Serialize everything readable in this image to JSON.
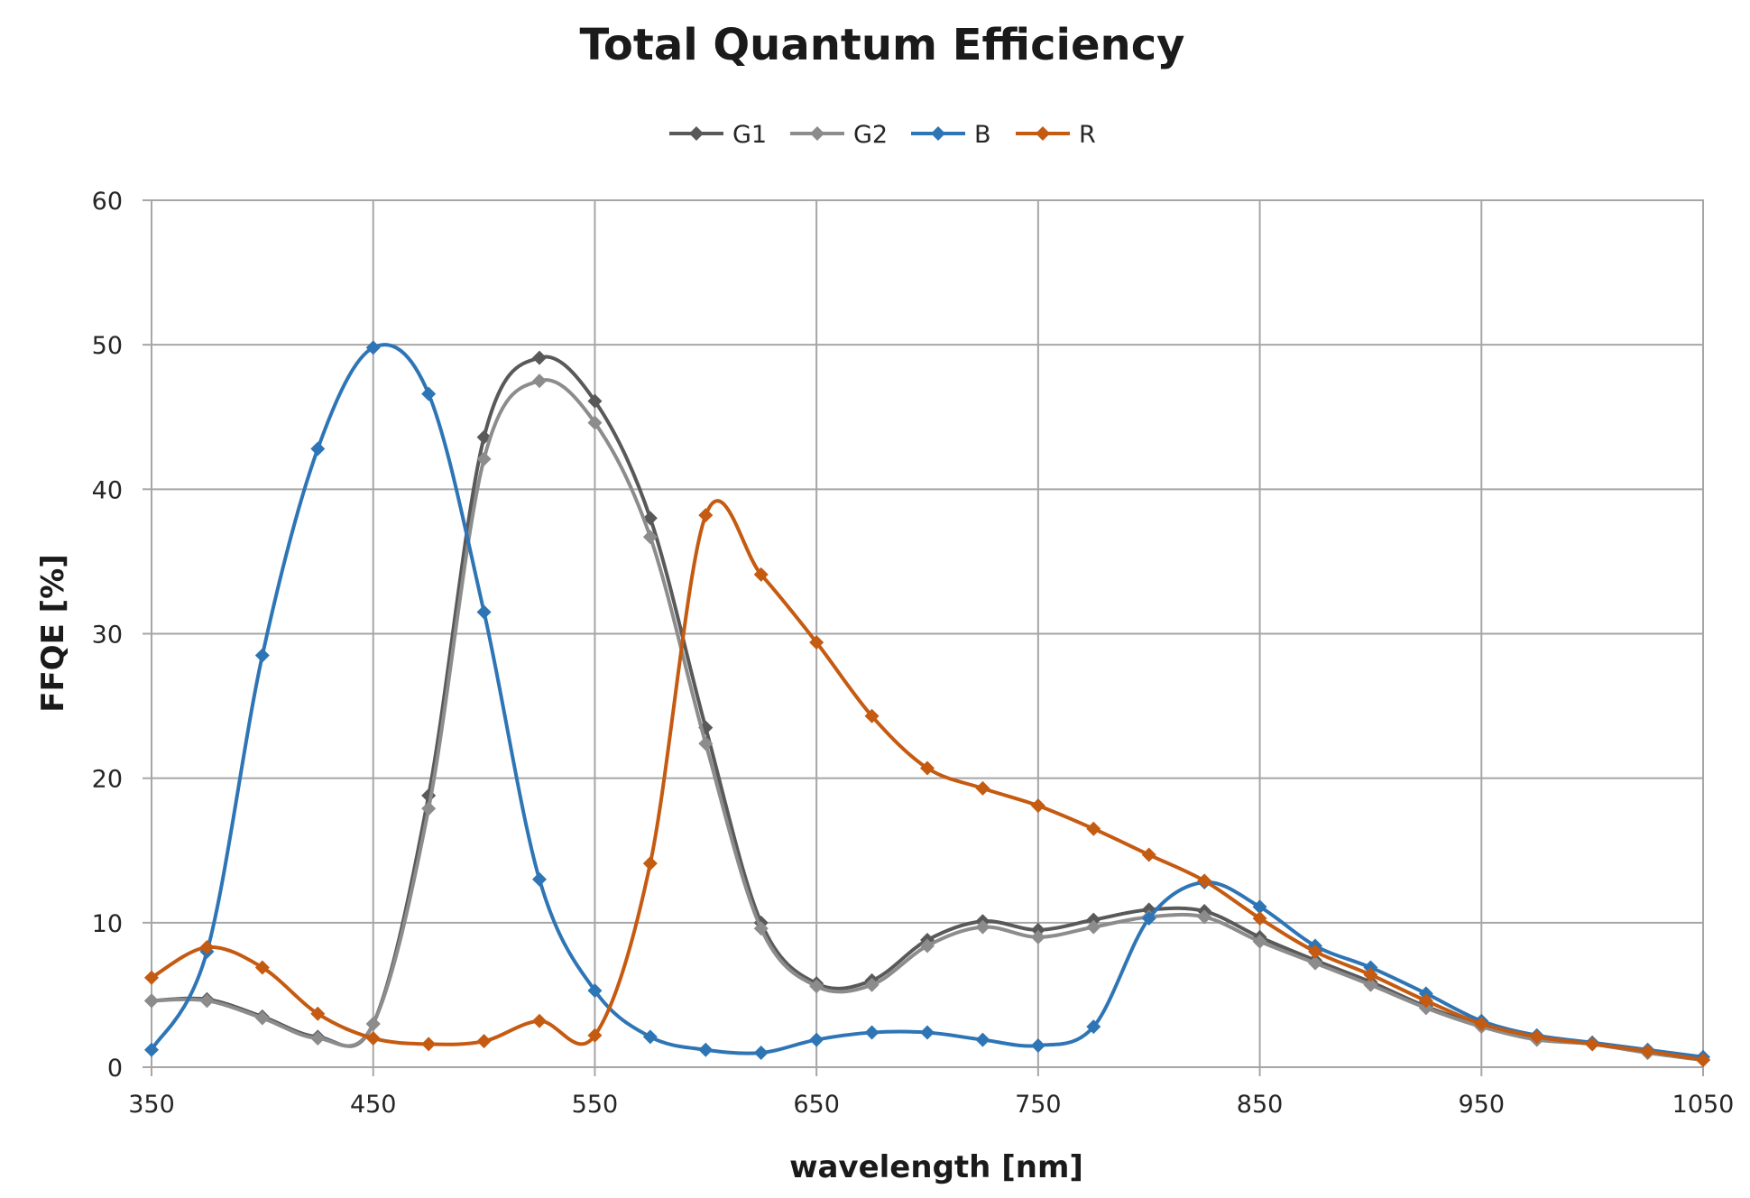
{
  "chart_data": {
    "type": "line",
    "title": "Total Quantum Efficiency",
    "xlabel": "wavelength [nm]",
    "ylabel": "FFQE [%]",
    "xlim": [
      350,
      1050
    ],
    "ylim": [
      0,
      60
    ],
    "x_ticks": [
      350,
      450,
      550,
      650,
      750,
      850,
      950,
      1050
    ],
    "y_ticks": [
      0,
      10,
      20,
      30,
      40,
      50,
      60
    ],
    "grid": true,
    "legend_position": "top-center",
    "x": [
      350,
      375,
      400,
      425,
      450,
      475,
      500,
      525,
      550,
      575,
      600,
      625,
      650,
      675,
      700,
      725,
      750,
      775,
      800,
      825,
      850,
      875,
      900,
      925,
      950,
      975,
      1000,
      1025,
      1050
    ],
    "series": [
      {
        "name": "G1",
        "color": "#595959",
        "values": [
          4.6,
          4.7,
          3.5,
          2.1,
          3.0,
          18.8,
          43.6,
          49.1,
          46.1,
          38.0,
          23.5,
          10.0,
          5.8,
          6.0,
          8.8,
          10.1,
          9.5,
          10.2,
          10.9,
          10.8,
          9.0,
          7.4,
          5.9,
          4.2,
          2.9,
          2.0,
          1.6,
          1.0,
          0.5
        ]
      },
      {
        "name": "G2",
        "color": "#8c8c8c",
        "values": [
          4.6,
          4.6,
          3.4,
          2.0,
          3.0,
          17.9,
          42.1,
          47.5,
          44.6,
          36.7,
          22.4,
          9.6,
          5.6,
          5.7,
          8.4,
          9.7,
          9.0,
          9.7,
          10.4,
          10.4,
          8.7,
          7.2,
          5.7,
          4.1,
          2.8,
          1.9,
          1.6,
          1.0,
          0.5
        ]
      },
      {
        "name": "B",
        "color": "#2e75b6",
        "values": [
          1.2,
          8.0,
          28.5,
          42.8,
          49.8,
          46.6,
          31.5,
          13.0,
          5.3,
          2.1,
          1.2,
          1.0,
          1.9,
          2.4,
          2.4,
          1.9,
          1.5,
          2.8,
          10.3,
          12.8,
          11.1,
          8.4,
          6.9,
          5.1,
          3.2,
          2.2,
          1.7,
          1.2,
          0.7
        ]
      },
      {
        "name": "R",
        "color": "#c55a11",
        "values": [
          6.2,
          8.3,
          6.9,
          3.7,
          2.0,
          1.6,
          1.8,
          3.2,
          2.2,
          14.1,
          38.2,
          34.1,
          29.4,
          24.3,
          20.7,
          19.3,
          18.1,
          16.5,
          14.7,
          12.9,
          10.3,
          8.0,
          6.4,
          4.6,
          3.0,
          2.1,
          1.6,
          1.1,
          0.5
        ]
      }
    ]
  }
}
